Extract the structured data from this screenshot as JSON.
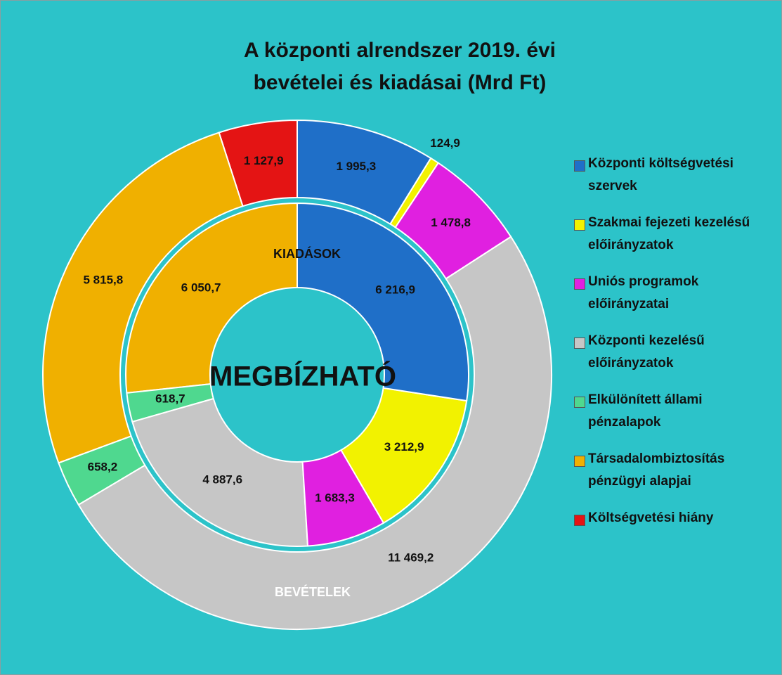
{
  "chart_data": {
    "type": "doughnut",
    "title": "A központi alrendszer 2019. évi bevételei és kiadásai (Mrd Ft)",
    "annotation": "MEGBÍZHATÓ",
    "categories": [
      "Központi költségvetési szervek",
      "Szakmai fejezeti kezelésű előirányzatok",
      "Uniós programok előirányzatai",
      "Központi kezelésű előirányzatok",
      "Elkülönített állami pénzalapok",
      "Társadalombiztosítás pénzügyi alapjai",
      "Költségvetési hiány"
    ],
    "colors": [
      "#1f6fc8",
      "#f2f200",
      "#e020e0",
      "#c6c6c6",
      "#4fd88f",
      "#f0b000",
      "#e41414"
    ],
    "series": [
      {
        "name": "BEVÉTELEK",
        "ring": "outer",
        "values": [
          1995.3,
          124.9,
          1478.8,
          11469.2,
          658.2,
          5815.8,
          1127.9
        ],
        "value_labels": [
          "1 995,3",
          "124,9",
          "1 478,8",
          "11 469,2",
          "658,2",
          "5 815,8",
          "1 127,9"
        ]
      },
      {
        "name": "KIADÁSOK",
        "ring": "inner",
        "values": [
          6216.9,
          3212.9,
          1683.3,
          4887.6,
          618.7,
          6050.7,
          null
        ],
        "value_labels": [
          "6 216,9",
          "3 212,9",
          "1 683,3",
          "4 887,6",
          "618,7",
          "6 050,7",
          null
        ]
      }
    ],
    "legend": "right"
  }
}
